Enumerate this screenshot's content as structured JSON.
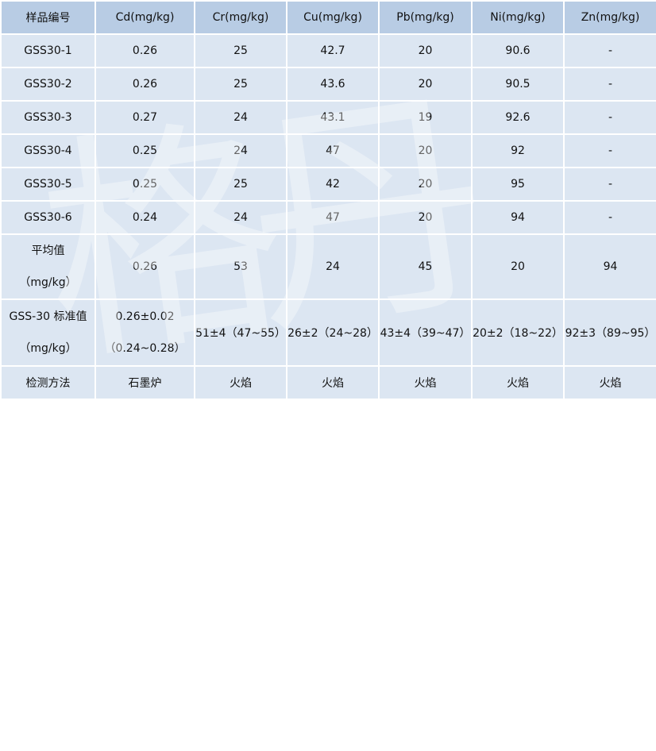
{
  "headers": [
    "样品编号",
    "Cd(mg/kg)",
    "Cr(mg/kg)",
    "Cu(mg/kg)",
    "Pb(mg/kg)",
    "Ni(mg/kg)",
    "Zn(mg/kg)"
  ],
  "rows": [
    [
      "GSS30-1",
      "0.26",
      "25",
      "42.7",
      "20",
      "90.6",
      "-"
    ],
    [
      "GSS30-2",
      "0.26",
      "25",
      "43.6",
      "20",
      "90.5",
      "-"
    ],
    [
      "GSS30-3",
      "0.27",
      "24",
      "43.1",
      "19",
      "92.6",
      "-"
    ],
    [
      "GSS30-4",
      "0.25",
      "24",
      "47",
      "20",
      "92",
      "-"
    ],
    [
      "GSS30-5",
      "0.25",
      "25",
      "42",
      "20",
      "95",
      "-"
    ],
    [
      "GSS30-6",
      "0.24",
      "24",
      "47",
      "20",
      "94",
      "-"
    ]
  ],
  "average": {
    "label_line1": "平均值",
    "label_line2": "（mg/kg）",
    "values": [
      "0.26",
      "53",
      "24",
      "45",
      "20",
      "94"
    ]
  },
  "standard": {
    "label_line1": "GSS-30 标准值",
    "label_line2": "（mg/kg）",
    "cd_line1": "0.26±0.02",
    "cd_line2": "（0.24~0.28）",
    "values": [
      "51±4（47~55）",
      "26±2（24~28）",
      "43±4（39~47）",
      "20±2（18~22）",
      "92±3（89~95）"
    ]
  },
  "method": {
    "label": "检测方法",
    "values": [
      "石墨炉",
      "火焰",
      "火焰",
      "火焰",
      "火焰",
      "火焰"
    ]
  },
  "watermark": "格丹纳"
}
